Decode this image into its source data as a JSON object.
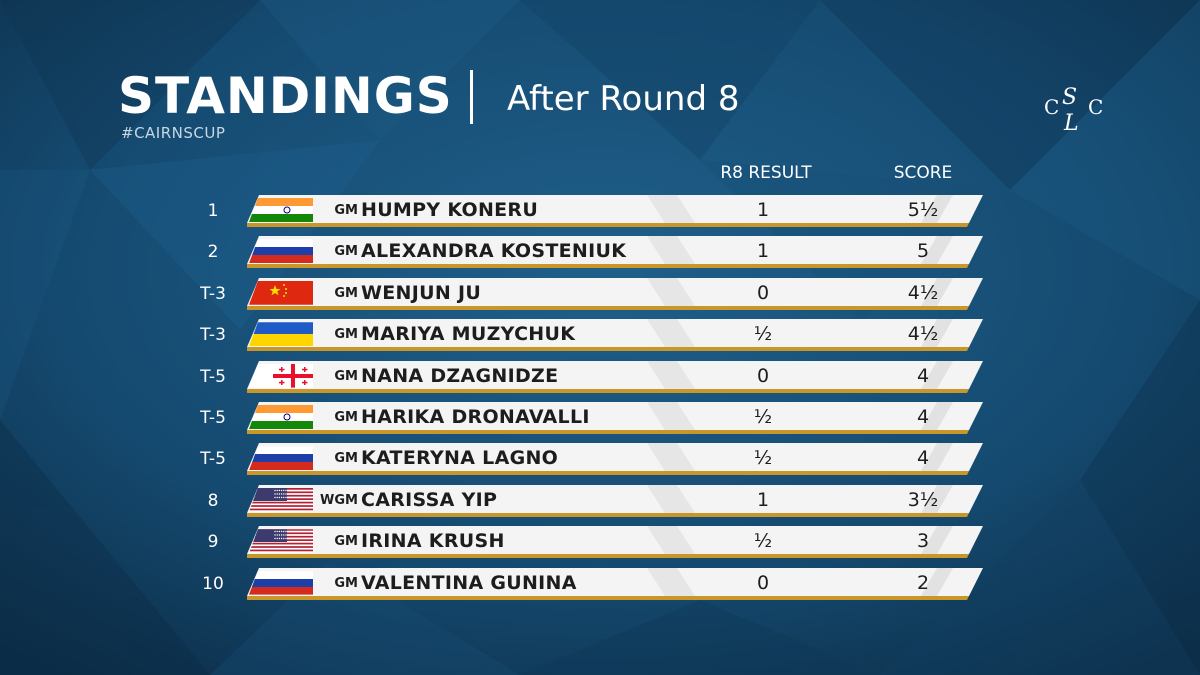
{
  "header": {
    "title": "STANDINGS",
    "subtitle": "After Round 8",
    "hashtag": "#CAIRNSCUP",
    "logo_text": "CSLC"
  },
  "columns": {
    "result": "R8 RESULT",
    "score": "SCORE"
  },
  "colors": {
    "background": "#123a5a",
    "bar": "#f4f4f4",
    "bar_accent": "#c9962a",
    "text_dark": "#1d1d1d"
  },
  "standings": [
    {
      "rank": "1",
      "flag": "india",
      "title": "GM",
      "name": "HUMPY KONERU",
      "result": "1",
      "score": "5½"
    },
    {
      "rank": "2",
      "flag": "russia",
      "title": "GM",
      "name": "ALEXANDRA KOSTENIUK",
      "result": "1",
      "score": "5"
    },
    {
      "rank": "T-3",
      "flag": "china",
      "title": "GM",
      "name": "WENJUN JU",
      "result": "0",
      "score": "4½"
    },
    {
      "rank": "T-3",
      "flag": "ukraine",
      "title": "GM",
      "name": "MARIYA MUZYCHUK",
      "result": "½",
      "score": "4½"
    },
    {
      "rank": "T-5",
      "flag": "georgia",
      "title": "GM",
      "name": "NANA DZAGNIDZE",
      "result": "0",
      "score": "4"
    },
    {
      "rank": "T-5",
      "flag": "india",
      "title": "GM",
      "name": "HARIKA DRONAVALLI",
      "result": "½",
      "score": "4"
    },
    {
      "rank": "T-5",
      "flag": "russia",
      "title": "GM",
      "name": "KATERYNA LAGNO",
      "result": "½",
      "score": "4"
    },
    {
      "rank": "8",
      "flag": "usa",
      "title": "WGM",
      "name": "CARISSA YIP",
      "result": "1",
      "score": "3½"
    },
    {
      "rank": "9",
      "flag": "usa",
      "title": "GM",
      "name": "IRINA KRUSH",
      "result": "½",
      "score": "3"
    },
    {
      "rank": "10",
      "flag": "russia",
      "title": "GM",
      "name": "VALENTINA GUNINA",
      "result": "0",
      "score": "2"
    }
  ]
}
